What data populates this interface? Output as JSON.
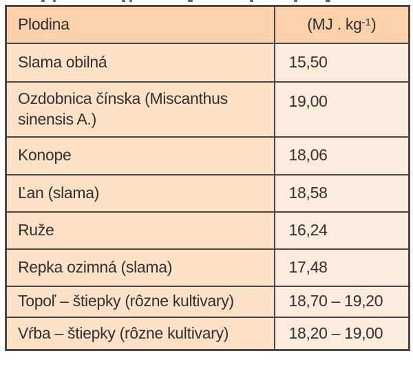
{
  "table": {
    "header": {
      "col1": "Plodina",
      "unit_prefix": "(MJ . kg",
      "unit_sup": "-1",
      "unit_suffix": ")"
    },
    "rows": [
      {
        "crop": "Slama obilná",
        "value": "15,50"
      },
      {
        "crop": "Ozdobnica čínska (Miscanthus\nsinensis A.)",
        "value": "19,00"
      },
      {
        "crop": "Konope",
        "value": "18,06"
      },
      {
        "crop": "Ľan (slama)",
        "value": "18,58"
      },
      {
        "crop": "Ruže",
        "value": "16,24"
      },
      {
        "crop": "Repka ozimná (slama)",
        "value": "17,48"
      },
      {
        "crop": "Topoľ – štiepky (rôzne kultivary)",
        "value": "18,70 – 19,20"
      },
      {
        "crop": "Vŕba – štiepky (rôzne kultivary)",
        "value": "18,20 – 19,00"
      }
    ],
    "colors": {
      "header_bg": "#fcd1ab",
      "crop_bg": "#fde1c7",
      "value_bg": "#fdecdd",
      "border": "#474747",
      "text": "#303030"
    }
  }
}
